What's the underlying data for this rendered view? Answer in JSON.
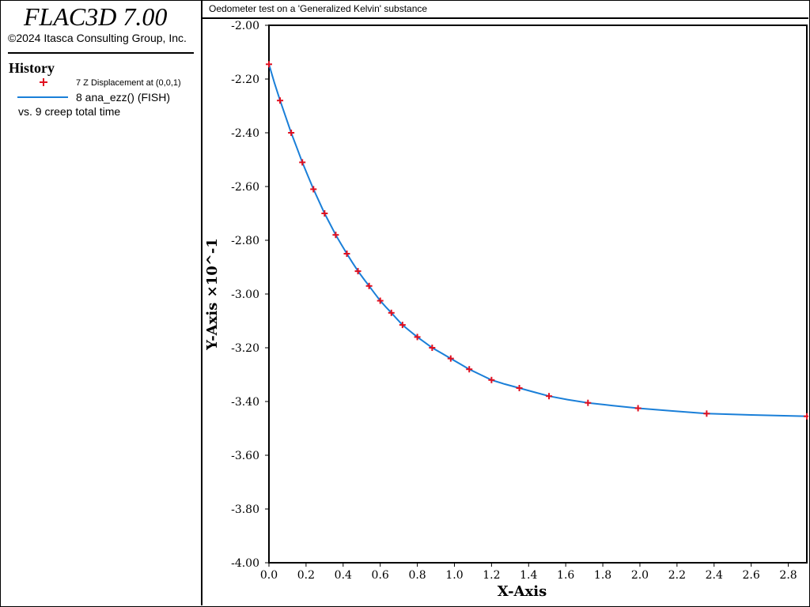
{
  "app": {
    "title": "FLAC3D 7.00",
    "copyright": "©2024 Itasca Consulting Group, Inc."
  },
  "history": {
    "heading": "History",
    "entries": [
      {
        "label": "7 Z Displacement at (0,0,1)",
        "marker": "plus",
        "color": "#e01020"
      },
      {
        "label": "8 ana_ezz() (FISH)",
        "marker": "line",
        "color": "#1a7fd8"
      }
    ],
    "versus": "vs. 9 creep total time"
  },
  "chart_data": {
    "type": "line",
    "title": "Oedometer test on a 'Generalized Kelvin' substance",
    "xlabel": "X-Axis",
    "ylabel": "Y-Axis ×10^-1",
    "xlim": [
      0,
      2.9
    ],
    "ylim": [
      -4.0,
      -2.0
    ],
    "x_ticks": [
      "0.0",
      "0.2",
      "0.4",
      "0.6",
      "0.8",
      "1.0",
      "1.2",
      "1.4",
      "1.6",
      "1.8",
      "2.0",
      "2.2",
      "2.4",
      "2.6",
      "2.8"
    ],
    "y_ticks": [
      "-2.00",
      "-2.20",
      "-2.40",
      "-2.60",
      "-2.80",
      "-3.00",
      "-3.20",
      "-3.40",
      "-3.60",
      "-3.80",
      "-4.00"
    ],
    "series": [
      {
        "name": "7 Z Displacement at (0,0,1)",
        "style": "markers",
        "color": "#e01020",
        "x": [
          0.0,
          0.06,
          0.12,
          0.18,
          0.24,
          0.3,
          0.36,
          0.42,
          0.48,
          0.54,
          0.6,
          0.66,
          0.72,
          0.8,
          0.88,
          0.98,
          1.08,
          1.2,
          1.35,
          1.51,
          1.72,
          1.99,
          2.36,
          2.9
        ],
        "y": [
          -2.145,
          -2.28,
          -2.4,
          -2.51,
          -2.61,
          -2.7,
          -2.78,
          -2.85,
          -2.915,
          -2.97,
          -3.025,
          -3.07,
          -3.115,
          -3.16,
          -3.2,
          -3.24,
          -3.28,
          -3.32,
          -3.35,
          -3.38,
          -3.405,
          -3.425,
          -3.445,
          -3.455
        ]
      },
      {
        "name": "8 ana_ezz() (FISH)",
        "style": "line",
        "color": "#1a7fd8",
        "x": [
          0.0,
          0.03,
          0.06,
          0.09,
          0.12,
          0.15,
          0.18,
          0.21,
          0.24,
          0.27,
          0.3,
          0.33,
          0.36,
          0.39,
          0.42,
          0.45,
          0.48,
          0.51,
          0.54,
          0.57,
          0.6,
          0.63,
          0.66,
          0.69,
          0.72,
          0.76,
          0.8,
          0.84,
          0.88,
          0.93,
          0.98,
          1.03,
          1.08,
          1.14,
          1.2,
          1.27,
          1.35,
          1.43,
          1.51,
          1.61,
          1.72,
          1.85,
          1.99,
          2.17,
          2.36,
          2.6,
          2.9
        ],
        "y": [
          -2.145,
          -2.215,
          -2.28,
          -2.34,
          -2.4,
          -2.455,
          -2.51,
          -2.56,
          -2.61,
          -2.655,
          -2.7,
          -2.74,
          -2.78,
          -2.815,
          -2.85,
          -2.883,
          -2.915,
          -2.943,
          -2.97,
          -2.998,
          -3.025,
          -3.048,
          -3.07,
          -3.093,
          -3.115,
          -3.138,
          -3.16,
          -3.18,
          -3.2,
          -3.22,
          -3.24,
          -3.26,
          -3.28,
          -3.3,
          -3.32,
          -3.335,
          -3.35,
          -3.365,
          -3.38,
          -3.393,
          -3.405,
          -3.415,
          -3.425,
          -3.435,
          -3.445,
          -3.45,
          -3.455
        ]
      }
    ]
  }
}
